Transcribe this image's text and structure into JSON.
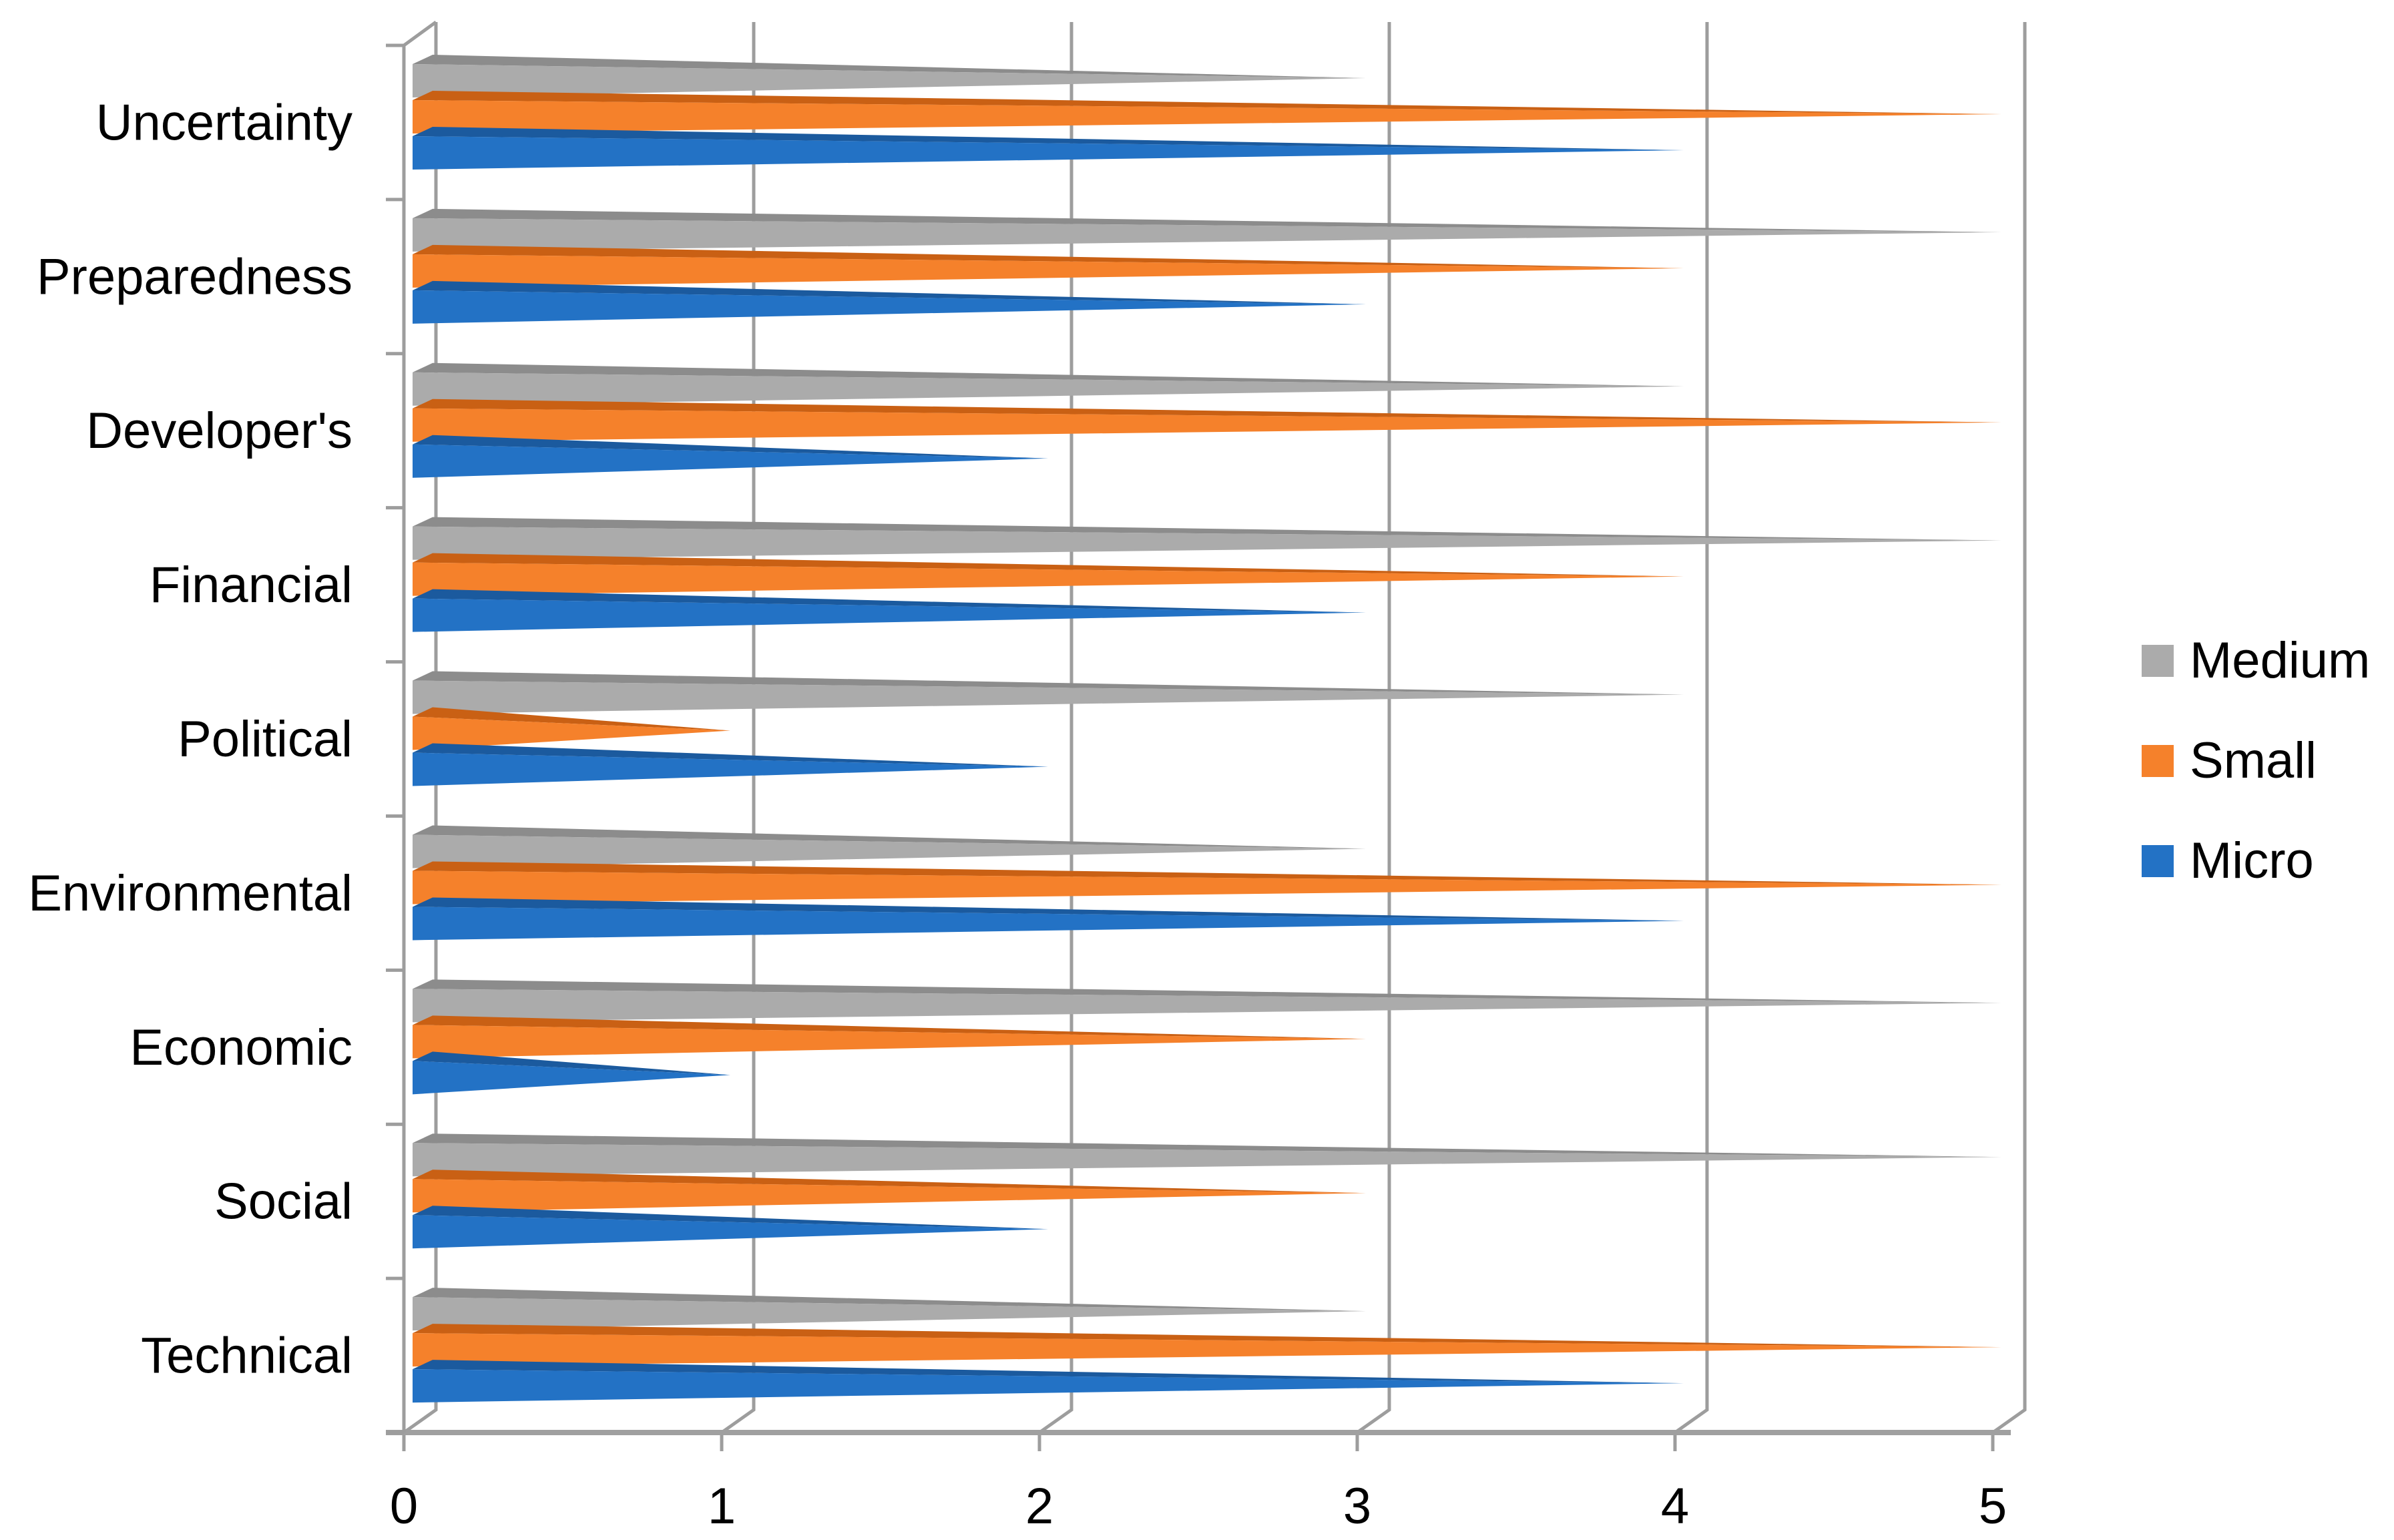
{
  "chart_data": {
    "type": "bar",
    "variant": "3d-horizontal-pyramid",
    "title": "",
    "xlabel": "",
    "ylabel": "",
    "categories": [
      "Uncertainty",
      "Preparedness",
      "Developer's",
      "Financial",
      "Political",
      "Environmental",
      "Economic",
      "Social",
      "Technical"
    ],
    "series": [
      {
        "name": "Medium",
        "color": "#ABABAB",
        "shade": "#8C8C8C",
        "values": [
          3,
          5,
          4,
          5,
          4,
          3,
          5,
          5,
          3
        ]
      },
      {
        "name": "Small",
        "color": "#F5812B",
        "shade": "#C96014",
        "values": [
          5,
          4,
          5,
          4,
          1,
          5,
          3,
          3,
          5
        ]
      },
      {
        "name": "Micro",
        "color": "#2372C5",
        "shade": "#1B5A9E",
        "values": [
          4,
          3,
          2,
          3,
          2,
          4,
          1,
          2,
          4
        ]
      }
    ],
    "x_ticks": [
      "0",
      "1",
      "2",
      "3",
      "4",
      "5"
    ],
    "xlim": [
      0,
      5
    ],
    "grid": true,
    "legend_position": "right",
    "grid_color": "#9D9D9D",
    "axis_color": "#A0A0A0",
    "text_color": "#000000",
    "background_color": "#FFFFFF"
  }
}
